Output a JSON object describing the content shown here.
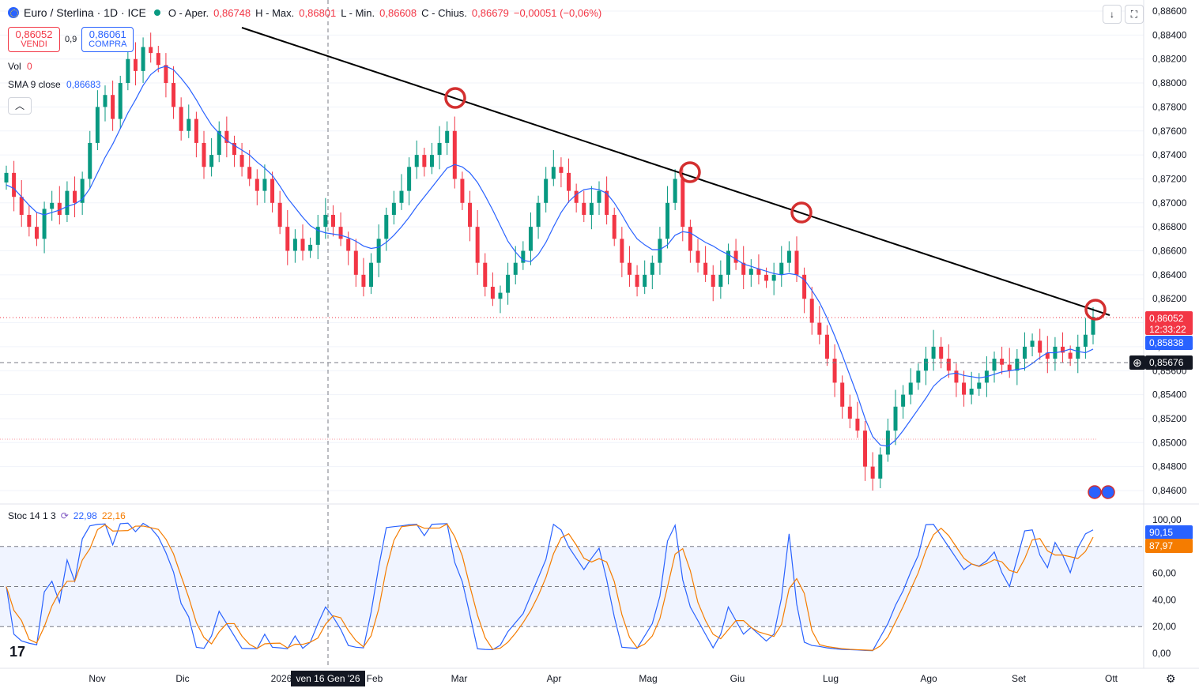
{
  "header": {
    "symbol": "Euro / Sterlina · 1D · ICE",
    "open_label": "O - Aper.",
    "open": "0,86748",
    "high_label": "H - Max.",
    "high": "0,86801",
    "low_label": "L - Min.",
    "low": "0,86608",
    "close_label": "C - Chius.",
    "close": "0,86679",
    "change": "−0,00051 (−0,06%)"
  },
  "trade": {
    "sell_price": "0,86052",
    "sell_label": "VENDI",
    "spread": "0,9",
    "buy_price": "0,86061",
    "buy_label": "COMPRA"
  },
  "indicators": {
    "vol_label": "Vol",
    "vol_value": "0",
    "sma_label": "SMA 9 close",
    "sma_value": "0,86683",
    "stoch_label": "Stoc 14 1 3",
    "stoch_k": "22,98",
    "stoch_d": "22,16"
  },
  "colors": {
    "up": "#089981",
    "down": "#f23645",
    "sma": "#2962ff",
    "stoch_k": "#2962ff",
    "stoch_d": "#f57c00",
    "trendline": "#000000",
    "circles": "#d32f2f"
  },
  "chart_data": {
    "type": "candlestick",
    "price_axis": {
      "ticks": [
        "0,88600",
        "0,88400",
        "0,88200",
        "0,88000",
        "0,87800",
        "0,87600",
        "0,87400",
        "0,87200",
        "0,87000",
        "0,86800",
        "0,86600",
        "0,86400",
        "0,86200",
        "0,86000",
        "0,85800",
        "0,85600",
        "0,85400",
        "0,85200",
        "0,85000",
        "0,84800",
        "0,84600"
      ],
      "range": [
        0.8455,
        0.8866
      ]
    },
    "price_labels": {
      "last": "0,86052",
      "countdown": "12:33:22",
      "sma": "0,85838",
      "crosshair": "0,85676"
    },
    "stoch_axis": {
      "ticks": [
        "100,00",
        "80,00",
        "60,00",
        "40,00",
        "20,00",
        "0,00"
      ],
      "k_label": "90,15",
      "d_label": "87,97"
    },
    "x_labels": [
      "Nov",
      "Dic",
      "2026",
      "Feb",
      "Mar",
      "Apr",
      "Mag",
      "Giu",
      "Lug",
      "Ago",
      "Set",
      "Ott"
    ],
    "crosshair_date": "ven 16 Gen '26",
    "close_series": [
      0.8725,
      0.8705,
      0.869,
      0.868,
      0.867,
      0.8695,
      0.87,
      0.869,
      0.871,
      0.87,
      0.872,
      0.875,
      0.878,
      0.879,
      0.877,
      0.88,
      0.882,
      0.881,
      0.883,
      0.8825,
      0.8815,
      0.88,
      0.878,
      0.876,
      0.877,
      0.875,
      0.873,
      0.874,
      0.876,
      0.875,
      0.874,
      0.873,
      0.872,
      0.871,
      0.872,
      0.87,
      0.868,
      0.866,
      0.867,
      0.866,
      0.8665,
      0.868,
      0.869,
      0.868,
      0.867,
      0.866,
      0.864,
      0.863,
      0.865,
      0.867,
      0.869,
      0.87,
      0.871,
      0.873,
      0.874,
      0.873,
      0.874,
      0.875,
      0.876,
      0.872,
      0.87,
      0.868,
      0.865,
      0.863,
      0.862,
      0.8625,
      0.864,
      0.865,
      0.866,
      0.868,
      0.87,
      0.872,
      0.873,
      0.8725,
      0.871,
      0.87,
      0.869,
      0.87,
      0.871,
      0.869,
      0.867,
      0.865,
      0.864,
      0.863,
      0.864,
      0.865,
      0.867,
      0.87,
      0.872,
      0.868,
      0.866,
      0.865,
      0.864,
      0.863,
      0.864,
      0.866,
      0.865,
      0.864,
      0.8645,
      0.864,
      0.8635,
      0.864,
      0.865,
      0.866,
      0.864,
      0.862,
      0.86,
      0.859,
      0.857,
      0.855,
      0.853,
      0.852,
      0.851,
      0.848,
      0.847,
      0.849,
      0.851,
      0.853,
      0.854,
      0.855,
      0.856,
      0.857,
      0.858,
      0.857,
      0.856,
      0.855,
      0.854,
      0.8545,
      0.855,
      0.856,
      0.857,
      0.8565,
      0.856,
      0.857,
      0.858,
      0.8585,
      0.8575,
      0.857,
      0.858,
      0.8575,
      0.857,
      0.858,
      0.859,
      0.8605
    ],
    "sma_series": [
      0.8715,
      0.8712,
      0.8705,
      0.8698,
      0.8692,
      0.869,
      0.8692,
      0.8694,
      0.8697,
      0.8699,
      0.8703,
      0.8712,
      0.8725,
      0.8738,
      0.8749,
      0.8762,
      0.8775,
      0.8786,
      0.8798,
      0.8807,
      0.8812,
      0.8814,
      0.8811,
      0.8804,
      0.8796,
      0.8786,
      0.8775,
      0.8765,
      0.8758,
      0.8752,
      0.8748,
      0.8744,
      0.874,
      0.8734,
      0.8729,
      0.8723,
      0.8714,
      0.8704,
      0.8696,
      0.8688,
      0.8681,
      0.8677,
      0.8675,
      0.8674,
      0.8673,
      0.8671,
      0.8668,
      0.8664,
      0.8662,
      0.8663,
      0.8667,
      0.8673,
      0.868,
      0.8688,
      0.8697,
      0.8705,
      0.8713,
      0.8721,
      0.8729,
      0.8732,
      0.873,
      0.8725,
      0.8717,
      0.8706,
      0.8694,
      0.8681,
      0.8668,
      0.8659,
      0.8652,
      0.8651,
      0.8657,
      0.8667,
      0.868,
      0.8692,
      0.8701,
      0.8707,
      0.8711,
      0.8712,
      0.8711,
      0.8708,
      0.87,
      0.869,
      0.8679,
      0.867,
      0.8665,
      0.8661,
      0.8661,
      0.8665,
      0.8673,
      0.8676,
      0.8675,
      0.8671,
      0.8667,
      0.8664,
      0.866,
      0.8657,
      0.8653,
      0.8649,
      0.8647,
      0.8645,
      0.8643,
      0.8641,
      0.864,
      0.8641,
      0.864,
      0.8636,
      0.8627,
      0.8617,
      0.8604,
      0.8589,
      0.8573,
      0.8556,
      0.8539,
      0.852,
      0.8505,
      0.8498,
      0.8497,
      0.8502,
      0.851,
      0.8519,
      0.8528,
      0.8537,
      0.8547,
      0.8553,
      0.8557,
      0.8558,
      0.8556,
      0.8555,
      0.8554,
      0.8555,
      0.8557,
      0.8559,
      0.856,
      0.8561,
      0.8562,
      0.8566,
      0.8571,
      0.8575,
      0.8575,
      0.8576,
      0.8578,
      0.8576,
      0.8575,
      0.8578,
      0.8584
    ]
  }
}
